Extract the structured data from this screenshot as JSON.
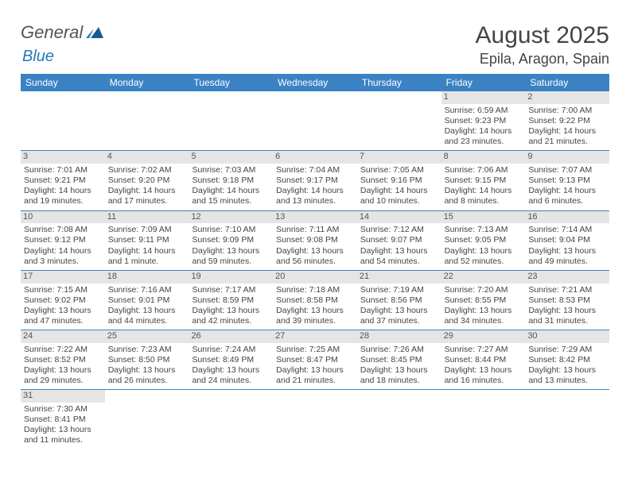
{
  "logo": {
    "general": "General",
    "blue": "Blue"
  },
  "header": {
    "month_title": "August 2025",
    "location": "Epila, Aragon, Spain"
  },
  "colors": {
    "header_bar": "#3b82c4",
    "num_bar_bg": "#e5e5e5",
    "text": "#444444",
    "logo_gray": "#555555",
    "logo_blue": "#2478b8"
  },
  "day_names": [
    "Sunday",
    "Monday",
    "Tuesday",
    "Wednesday",
    "Thursday",
    "Friday",
    "Saturday"
  ],
  "weeks": [
    [
      {
        "blank": true
      },
      {
        "blank": true
      },
      {
        "blank": true
      },
      {
        "blank": true
      },
      {
        "blank": true
      },
      {
        "num": "1",
        "sunrise": "Sunrise: 6:59 AM",
        "sunset": "Sunset: 9:23 PM",
        "day1": "Daylight: 14 hours",
        "day2": "and 23 minutes."
      },
      {
        "num": "2",
        "sunrise": "Sunrise: 7:00 AM",
        "sunset": "Sunset: 9:22 PM",
        "day1": "Daylight: 14 hours",
        "day2": "and 21 minutes."
      }
    ],
    [
      {
        "num": "3",
        "sunrise": "Sunrise: 7:01 AM",
        "sunset": "Sunset: 9:21 PM",
        "day1": "Daylight: 14 hours",
        "day2": "and 19 minutes."
      },
      {
        "num": "4",
        "sunrise": "Sunrise: 7:02 AM",
        "sunset": "Sunset: 9:20 PM",
        "day1": "Daylight: 14 hours",
        "day2": "and 17 minutes."
      },
      {
        "num": "5",
        "sunrise": "Sunrise: 7:03 AM",
        "sunset": "Sunset: 9:18 PM",
        "day1": "Daylight: 14 hours",
        "day2": "and 15 minutes."
      },
      {
        "num": "6",
        "sunrise": "Sunrise: 7:04 AM",
        "sunset": "Sunset: 9:17 PM",
        "day1": "Daylight: 14 hours",
        "day2": "and 13 minutes."
      },
      {
        "num": "7",
        "sunrise": "Sunrise: 7:05 AM",
        "sunset": "Sunset: 9:16 PM",
        "day1": "Daylight: 14 hours",
        "day2": "and 10 minutes."
      },
      {
        "num": "8",
        "sunrise": "Sunrise: 7:06 AM",
        "sunset": "Sunset: 9:15 PM",
        "day1": "Daylight: 14 hours",
        "day2": "and 8 minutes."
      },
      {
        "num": "9",
        "sunrise": "Sunrise: 7:07 AM",
        "sunset": "Sunset: 9:13 PM",
        "day1": "Daylight: 14 hours",
        "day2": "and 6 minutes."
      }
    ],
    [
      {
        "num": "10",
        "sunrise": "Sunrise: 7:08 AM",
        "sunset": "Sunset: 9:12 PM",
        "day1": "Daylight: 14 hours",
        "day2": "and 3 minutes."
      },
      {
        "num": "11",
        "sunrise": "Sunrise: 7:09 AM",
        "sunset": "Sunset: 9:11 PM",
        "day1": "Daylight: 14 hours",
        "day2": "and 1 minute."
      },
      {
        "num": "12",
        "sunrise": "Sunrise: 7:10 AM",
        "sunset": "Sunset: 9:09 PM",
        "day1": "Daylight: 13 hours",
        "day2": "and 59 minutes."
      },
      {
        "num": "13",
        "sunrise": "Sunrise: 7:11 AM",
        "sunset": "Sunset: 9:08 PM",
        "day1": "Daylight: 13 hours",
        "day2": "and 56 minutes."
      },
      {
        "num": "14",
        "sunrise": "Sunrise: 7:12 AM",
        "sunset": "Sunset: 9:07 PM",
        "day1": "Daylight: 13 hours",
        "day2": "and 54 minutes."
      },
      {
        "num": "15",
        "sunrise": "Sunrise: 7:13 AM",
        "sunset": "Sunset: 9:05 PM",
        "day1": "Daylight: 13 hours",
        "day2": "and 52 minutes."
      },
      {
        "num": "16",
        "sunrise": "Sunrise: 7:14 AM",
        "sunset": "Sunset: 9:04 PM",
        "day1": "Daylight: 13 hours",
        "day2": "and 49 minutes."
      }
    ],
    [
      {
        "num": "17",
        "sunrise": "Sunrise: 7:15 AM",
        "sunset": "Sunset: 9:02 PM",
        "day1": "Daylight: 13 hours",
        "day2": "and 47 minutes."
      },
      {
        "num": "18",
        "sunrise": "Sunrise: 7:16 AM",
        "sunset": "Sunset: 9:01 PM",
        "day1": "Daylight: 13 hours",
        "day2": "and 44 minutes."
      },
      {
        "num": "19",
        "sunrise": "Sunrise: 7:17 AM",
        "sunset": "Sunset: 8:59 PM",
        "day1": "Daylight: 13 hours",
        "day2": "and 42 minutes."
      },
      {
        "num": "20",
        "sunrise": "Sunrise: 7:18 AM",
        "sunset": "Sunset: 8:58 PM",
        "day1": "Daylight: 13 hours",
        "day2": "and 39 minutes."
      },
      {
        "num": "21",
        "sunrise": "Sunrise: 7:19 AM",
        "sunset": "Sunset: 8:56 PM",
        "day1": "Daylight: 13 hours",
        "day2": "and 37 minutes."
      },
      {
        "num": "22",
        "sunrise": "Sunrise: 7:20 AM",
        "sunset": "Sunset: 8:55 PM",
        "day1": "Daylight: 13 hours",
        "day2": "and 34 minutes."
      },
      {
        "num": "23",
        "sunrise": "Sunrise: 7:21 AM",
        "sunset": "Sunset: 8:53 PM",
        "day1": "Daylight: 13 hours",
        "day2": "and 31 minutes."
      }
    ],
    [
      {
        "num": "24",
        "sunrise": "Sunrise: 7:22 AM",
        "sunset": "Sunset: 8:52 PM",
        "day1": "Daylight: 13 hours",
        "day2": "and 29 minutes."
      },
      {
        "num": "25",
        "sunrise": "Sunrise: 7:23 AM",
        "sunset": "Sunset: 8:50 PM",
        "day1": "Daylight: 13 hours",
        "day2": "and 26 minutes."
      },
      {
        "num": "26",
        "sunrise": "Sunrise: 7:24 AM",
        "sunset": "Sunset: 8:49 PM",
        "day1": "Daylight: 13 hours",
        "day2": "and 24 minutes."
      },
      {
        "num": "27",
        "sunrise": "Sunrise: 7:25 AM",
        "sunset": "Sunset: 8:47 PM",
        "day1": "Daylight: 13 hours",
        "day2": "and 21 minutes."
      },
      {
        "num": "28",
        "sunrise": "Sunrise: 7:26 AM",
        "sunset": "Sunset: 8:45 PM",
        "day1": "Daylight: 13 hours",
        "day2": "and 18 minutes."
      },
      {
        "num": "29",
        "sunrise": "Sunrise: 7:27 AM",
        "sunset": "Sunset: 8:44 PM",
        "day1": "Daylight: 13 hours",
        "day2": "and 16 minutes."
      },
      {
        "num": "30",
        "sunrise": "Sunrise: 7:29 AM",
        "sunset": "Sunset: 8:42 PM",
        "day1": "Daylight: 13 hours",
        "day2": "and 13 minutes."
      }
    ],
    [
      {
        "num": "31",
        "sunrise": "Sunrise: 7:30 AM",
        "sunset": "Sunset: 8:41 PM",
        "day1": "Daylight: 13 hours",
        "day2": "and 11 minutes."
      },
      {
        "blank": true
      },
      {
        "blank": true
      },
      {
        "blank": true
      },
      {
        "blank": true
      },
      {
        "blank": true
      },
      {
        "blank": true
      }
    ]
  ]
}
